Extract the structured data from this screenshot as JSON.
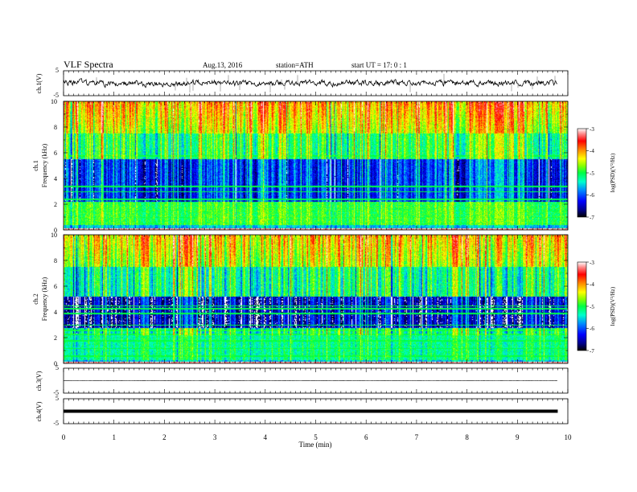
{
  "header": {
    "title": "VLF  Spectra",
    "date": "Aug.13, 2016",
    "station": "station=ATH",
    "start": "start  UT  =    17: 0  : 1"
  },
  "chart_data": [
    {
      "id": "ch1-waveform",
      "type": "line",
      "ylabel": "ch.1(V)",
      "ylim": [
        -5,
        5
      ],
      "ytick_labels": [
        "5",
        "-5"
      ],
      "xlim": [
        0,
        10
      ],
      "data_end_min": 9.8,
      "baseline": 0,
      "description_level": "noisy waveform, typical amplitude about +/-1 V with spikes to +/-4 V"
    },
    {
      "id": "ch1-spectrogram",
      "type": "heatmap",
      "ylabel": "ch.1",
      "ylabel2": "Frequency  (kHz)",
      "ylim": [
        0,
        10
      ],
      "ytick_labels": [
        "0",
        "2",
        "4",
        "6",
        "8",
        "10"
      ],
      "xlim": [
        0,
        10
      ],
      "colorbar": {
        "label": "log(PSD)(V²/Hz)",
        "range": [
          -7,
          -3
        ],
        "tick_labels": [
          "-3",
          "-4",
          "-5",
          "-6",
          "-7"
        ]
      },
      "band_lines_khz": [
        0.5,
        1.0,
        1.5,
        2.4,
        3.0,
        3.4,
        5.8
      ]
    },
    {
      "id": "ch2-spectrogram",
      "type": "heatmap",
      "ylabel": "ch.2",
      "ylabel2": "Frequency  (kHz)",
      "ylim": [
        0,
        10
      ],
      "ytick_labels": [
        "0",
        "2",
        "4",
        "6",
        "8",
        "10"
      ],
      "xlim": [
        0,
        10
      ],
      "colorbar": {
        "label": "log(PSD)(V²/Hz)",
        "range": [
          -7,
          -3
        ],
        "tick_labels": [
          "-3",
          "-4",
          "-5",
          "-6",
          "-7"
        ]
      },
      "band_lines_khz": [
        0.6,
        1.2,
        1.8,
        2.3,
        2.6,
        3.0,
        3.9,
        4.3,
        4.5
      ]
    },
    {
      "id": "ch3-waveform",
      "type": "line",
      "ylabel": "ch.3(V)",
      "ylim": [
        -5,
        5
      ],
      "ytick_labels": [
        "5",
        "-5"
      ],
      "xlim": [
        0,
        10
      ],
      "data_end_min": 9.8,
      "baseline": 0
    },
    {
      "id": "ch4-waveform",
      "type": "line",
      "ylabel": "ch.4(V)",
      "ylim": [
        -5,
        5
      ],
      "ytick_labels": [
        "5",
        "-5"
      ],
      "xlim": [
        0,
        10
      ],
      "data_end_min": 9.8,
      "baseline": 0
    }
  ],
  "xaxis": {
    "label": "Time  (min)",
    "tick_labels": [
      "0",
      "1",
      "2",
      "3",
      "4",
      "5",
      "6",
      "7",
      "8",
      "9",
      "10"
    ]
  },
  "colormap": [
    "#000000",
    "#00008a",
    "#0000ff",
    "#0077ff",
    "#00ccff",
    "#00ff88",
    "#66ff00",
    "#ccff00",
    "#ffff00",
    "#ffaa00",
    "#ff4400",
    "#ff0000",
    "#ff6666",
    "#ffbbbb",
    "#ffffff"
  ]
}
